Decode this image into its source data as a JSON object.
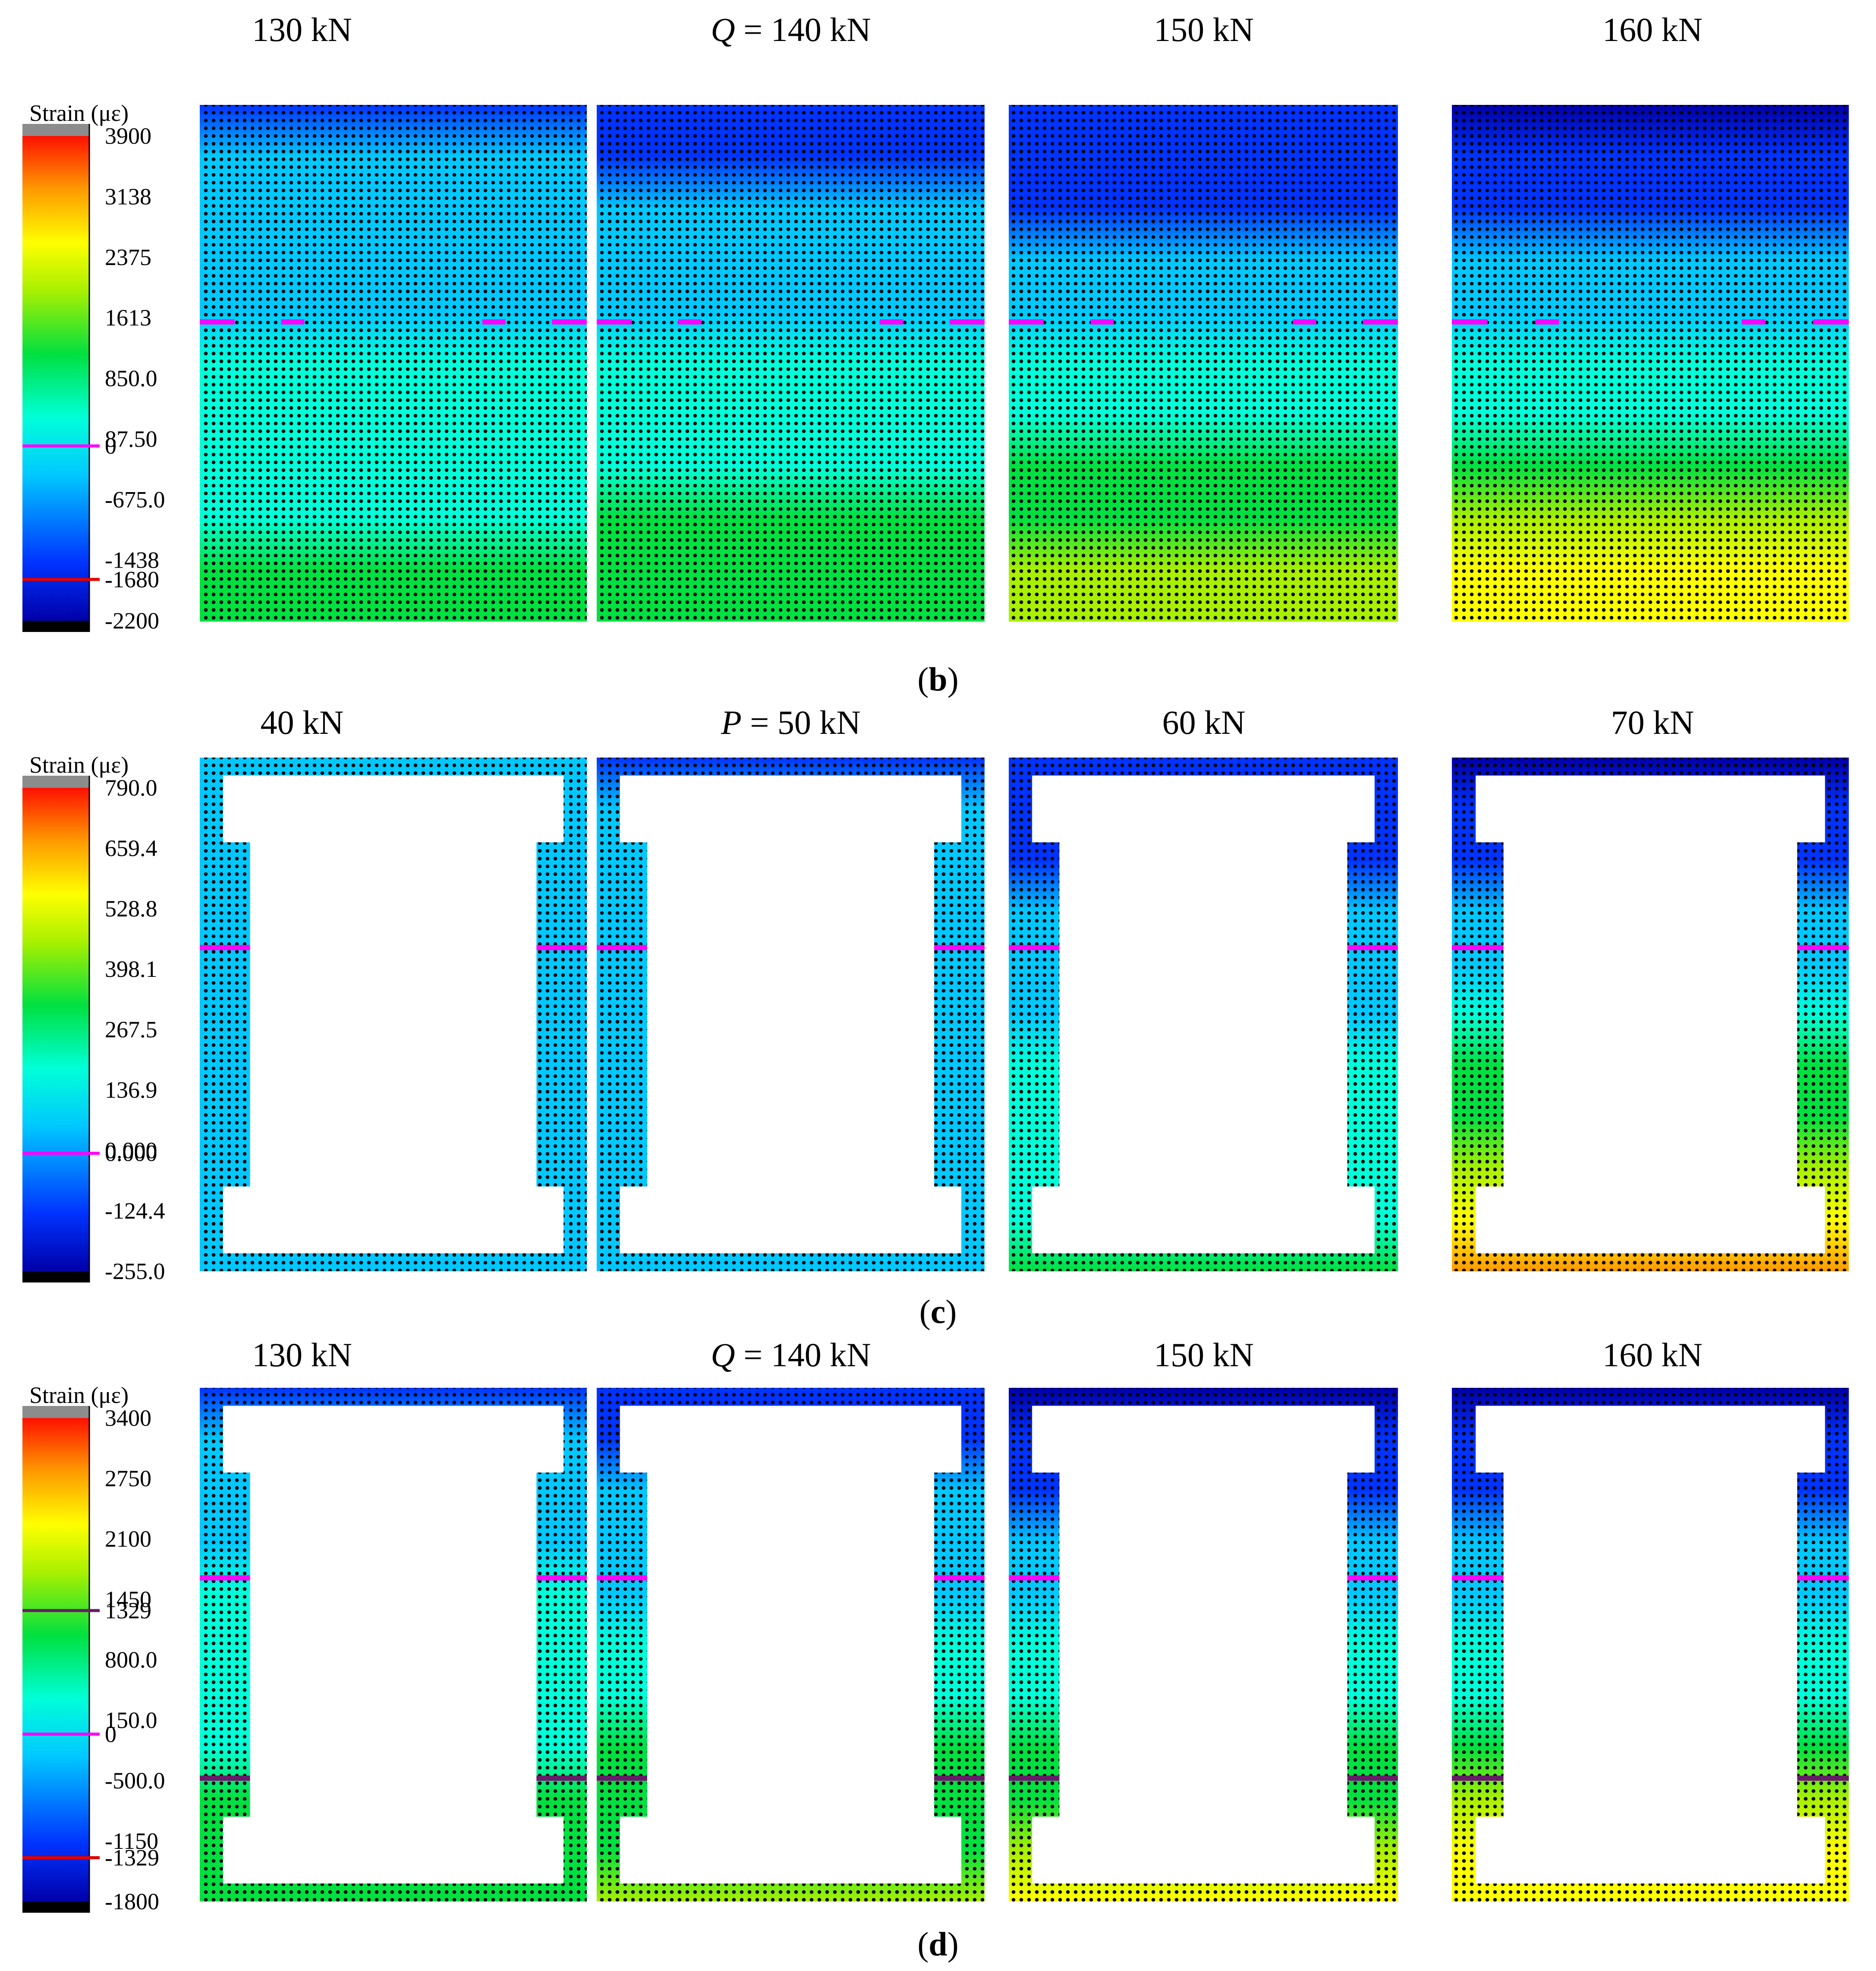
{
  "rows": [
    {
      "label": "b",
      "shape": "frame",
      "legend_title": "Strain (με)",
      "legend_ticks": [
        "3900",
        "3138",
        "2375",
        "1613",
        "850.0",
        "87.50",
        "-675.0",
        "-1438",
        "-2200"
      ],
      "legend_markers": [
        {
          "text": "0",
          "value": 0,
          "color": "#ff00ff"
        },
        {
          "text": "-1680",
          "value": -1680,
          "color": "#e00000"
        }
      ],
      "scale": {
        "max": 3900,
        "min": -2200
      },
      "panels": [
        {
          "title": "130 kN",
          "variable": "",
          "top_fraction": 0.3,
          "bottom_fraction": 0.58
        },
        {
          "title": "140 kN",
          "variable": "Q",
          "top_fraction": 0.25,
          "bottom_fraction": 0.63
        },
        {
          "title": "150 kN",
          "variable": "",
          "top_fraction": 0.18,
          "bottom_fraction": 0.75
        },
        {
          "title": "160 kN",
          "variable": "",
          "top_fraction": 0.08,
          "bottom_fraction": 0.86
        }
      ]
    },
    {
      "label": "c",
      "shape": "c",
      "legend_title": "Strain (με)",
      "legend_ticks": [
        "790.0",
        "659.4",
        "528.8",
        "398.1",
        "267.5",
        "136.9",
        "0.000",
        "-124.4",
        "-255.0"
      ],
      "legend_markers": [
        {
          "text": "0.000",
          "value": 0,
          "color": "#ff00ff"
        }
      ],
      "scale": {
        "max": 790,
        "min": -255
      },
      "panels": [
        {
          "title": "40 kN",
          "variable": "",
          "top_fraction": 0.32,
          "bottom_fraction": 0.38
        },
        {
          "title": "50 kN",
          "variable": "P",
          "top_fraction": 0.3,
          "bottom_fraction": 0.42
        },
        {
          "title": "60 kN",
          "variable": "",
          "top_fraction": 0.2,
          "bottom_fraction": 0.58
        },
        {
          "title": "70 kN",
          "variable": "",
          "top_fraction": 0.06,
          "bottom_fraction": 0.93
        }
      ]
    },
    {
      "label": "d",
      "shape": "c",
      "legend_title": "Strain (με)",
      "legend_ticks": [
        "3400",
        "2750",
        "2100",
        "1450",
        "800.0",
        "150.0",
        "-500.0",
        "-1150",
        "-1800"
      ],
      "legend_markers": [
        {
          "text": "1329",
          "value": 1329,
          "color": "#6a1a6a"
        },
        {
          "text": "0",
          "value": 0,
          "color": "#ff00ff"
        },
        {
          "text": "-1329",
          "value": -1329,
          "color": "#e00000"
        }
      ],
      "scale": {
        "max": 3400,
        "min": -1800
      },
      "panels": [
        {
          "title": "130 kN",
          "variable": "",
          "top_fraction": 0.3,
          "bottom_fraction": 0.62
        },
        {
          "title": "140 kN",
          "variable": "Q",
          "top_fraction": 0.22,
          "bottom_fraction": 0.7
        },
        {
          "title": "150 kN",
          "variable": "",
          "top_fraction": 0.12,
          "bottom_fraction": 0.8
        },
        {
          "title": "160 kN",
          "variable": "",
          "top_fraction": 0.07,
          "bottom_fraction": 0.87
        }
      ]
    }
  ]
}
